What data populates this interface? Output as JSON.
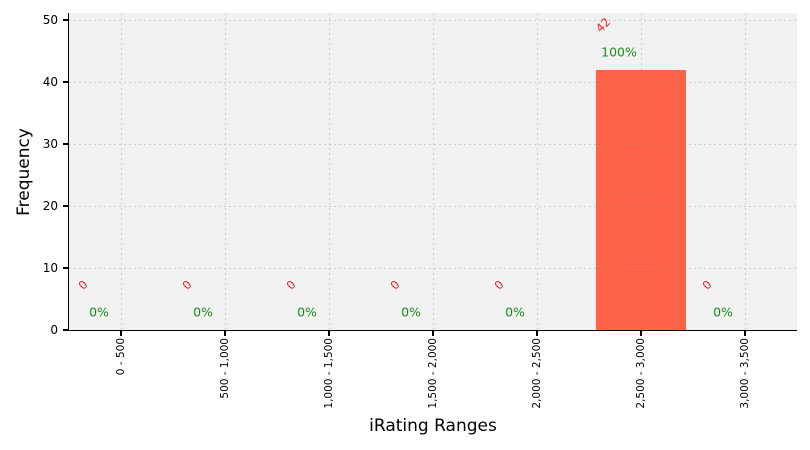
{
  "chart_data": {
    "type": "bar",
    "title": "",
    "xlabel": "iRating Ranges",
    "ylabel": "Frequency",
    "categories": [
      "0 - 500",
      "500 - 1,000",
      "1,000 - 1,500",
      "1,500 - 2,000",
      "2,000 - 2,500",
      "2,500 - 3,000",
      "3,000 - 3,500"
    ],
    "values": [
      0,
      0,
      0,
      0,
      0,
      42,
      0
    ],
    "value_labels": [
      "0",
      "0",
      "0",
      "0",
      "0",
      "42",
      "0"
    ],
    "percent_labels": [
      "0%",
      "0%",
      "0%",
      "0%",
      "0%",
      "100%",
      "0%"
    ],
    "ylim": [
      0,
      50
    ],
    "yticks": [
      0,
      10,
      20,
      30,
      40,
      50
    ],
    "grid": "dashed-both-axes",
    "legend": "none",
    "colors": {
      "bar": "#ff6347",
      "value_labels": "#ee2222",
      "percent_labels": "#1e8b1e",
      "plot_background": "#f1f1f1",
      "figure_background": "#ffffff",
      "gridlines": "#808080",
      "axes": "#000000"
    }
  }
}
